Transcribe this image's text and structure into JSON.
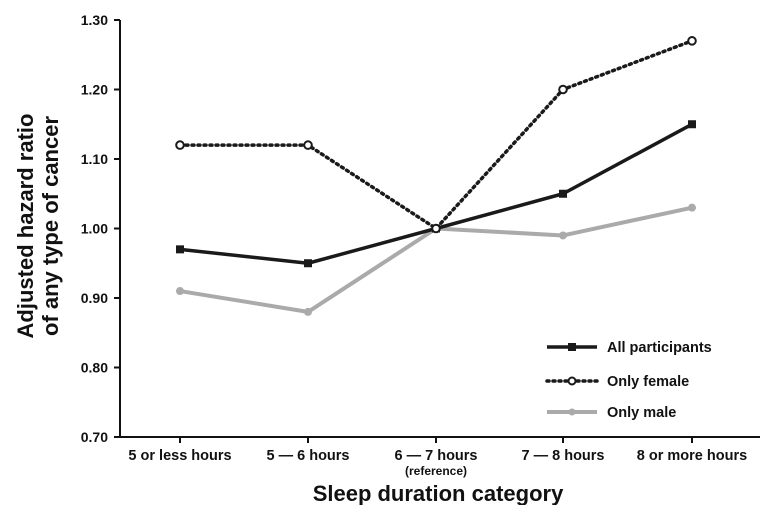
{
  "chart_data": {
    "type": "line",
    "xlabel": "Sleep duration category",
    "ylabel": [
      "Adjusted hazard ratio",
      "of any type of cancer"
    ],
    "categories": [
      "5 or less hours",
      "5 — 6 hours",
      "6 — 7 hours",
      "7 — 8 hours",
      "8 or more hours"
    ],
    "category_sublabels": [
      "",
      "",
      "(reference)",
      "",
      ""
    ],
    "ylim": [
      0.7,
      1.3
    ],
    "yticks": [
      "0.70",
      "0.80",
      "0.90",
      "1.00",
      "1.10",
      "1.20",
      "1.30"
    ],
    "grid": false,
    "legend_position": "bottom-right",
    "series": [
      {
        "name": "All participants",
        "values": [
          0.97,
          0.95,
          1.0,
          1.05,
          1.15
        ],
        "color": "#1a1a1a",
        "style": "solid",
        "marker": "square"
      },
      {
        "name": "Only female",
        "values": [
          1.12,
          1.12,
          1.0,
          1.2,
          1.27
        ],
        "color": "#1a1a1a",
        "style": "dotted",
        "marker": "circle"
      },
      {
        "name": "Only male",
        "values": [
          0.91,
          0.88,
          1.0,
          0.99,
          1.03
        ],
        "color": "#aaaaaa",
        "style": "solid",
        "marker": "circle"
      }
    ]
  }
}
